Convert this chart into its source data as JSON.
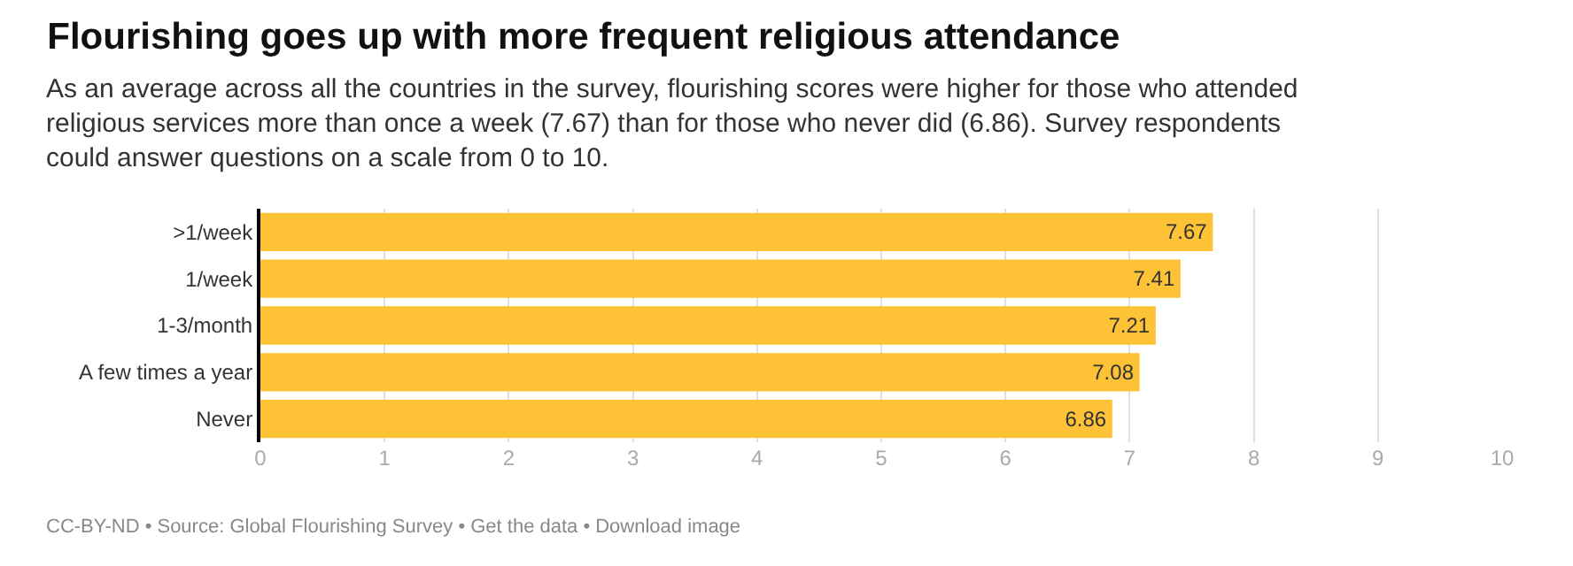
{
  "chart_data": {
    "type": "bar",
    "orientation": "horizontal",
    "title": "Flourishing goes up with more frequent religious attendance",
    "subtitle": "As an average across all the countries in the survey, flourishing scores were higher for those who attended religious services more than once a week (7.67) than for those who never did (6.86). Survey respondents could answer questions on a scale from 0 to 10.",
    "categories": [
      ">1/week",
      "1/week",
      "1-3/month",
      "A few times a year",
      "Never"
    ],
    "values": [
      7.67,
      7.41,
      7.21,
      7.08,
      6.86
    ],
    "color": "#fdc235",
    "xlim": [
      0,
      10
    ],
    "xticks": [
      0,
      1,
      2,
      3,
      4,
      5,
      6,
      7,
      8,
      9,
      10
    ],
    "grid": "x",
    "data_labels": true,
    "annotations": [
      "CC-BY-ND • Source: Global Flourishing Survey • Get the data • Download image"
    ]
  }
}
